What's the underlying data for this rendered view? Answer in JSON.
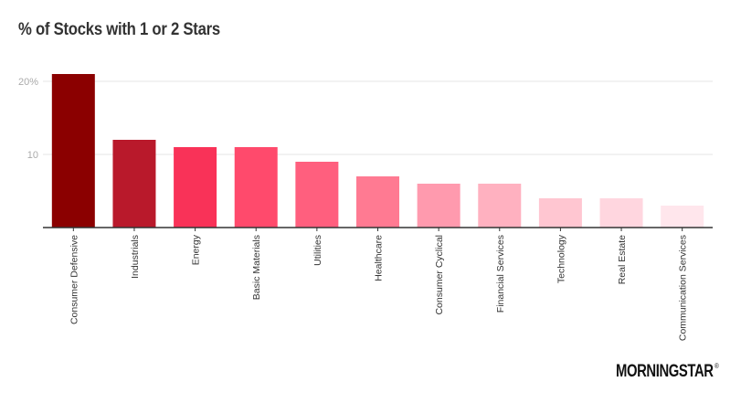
{
  "chart_data": {
    "type": "bar",
    "title": "% of Stocks with 1 or 2 Stars",
    "xlabel": "",
    "ylabel": "",
    "categories": [
      "Consumer Defensive",
      "Industrials",
      "Energy",
      "Basic Materials",
      "Utilities",
      "Healthcare",
      "Consumer Cyclical",
      "Financial Services",
      "Technology",
      "Real Estate",
      "Communication Services"
    ],
    "values": [
      21,
      12,
      11,
      11,
      9,
      7,
      6,
      6,
      4,
      4,
      3
    ],
    "colors": [
      "#8b0000",
      "#b9192b",
      "#f93258",
      "#ff4a6c",
      "#ff5f7e",
      "#ff7a92",
      "#ff9aae",
      "#ffb1c0",
      "#ffc6d1",
      "#ffd6df",
      "#ffe6ec"
    ],
    "ylim": [
      0,
      21
    ],
    "yticks": [
      {
        "value": 10,
        "label": "10"
      },
      {
        "value": 20,
        "label": "20%"
      }
    ],
    "grid": true,
    "legend": "none"
  },
  "branding": {
    "logo_text": "MORNINGSTAR",
    "registered": "®"
  }
}
